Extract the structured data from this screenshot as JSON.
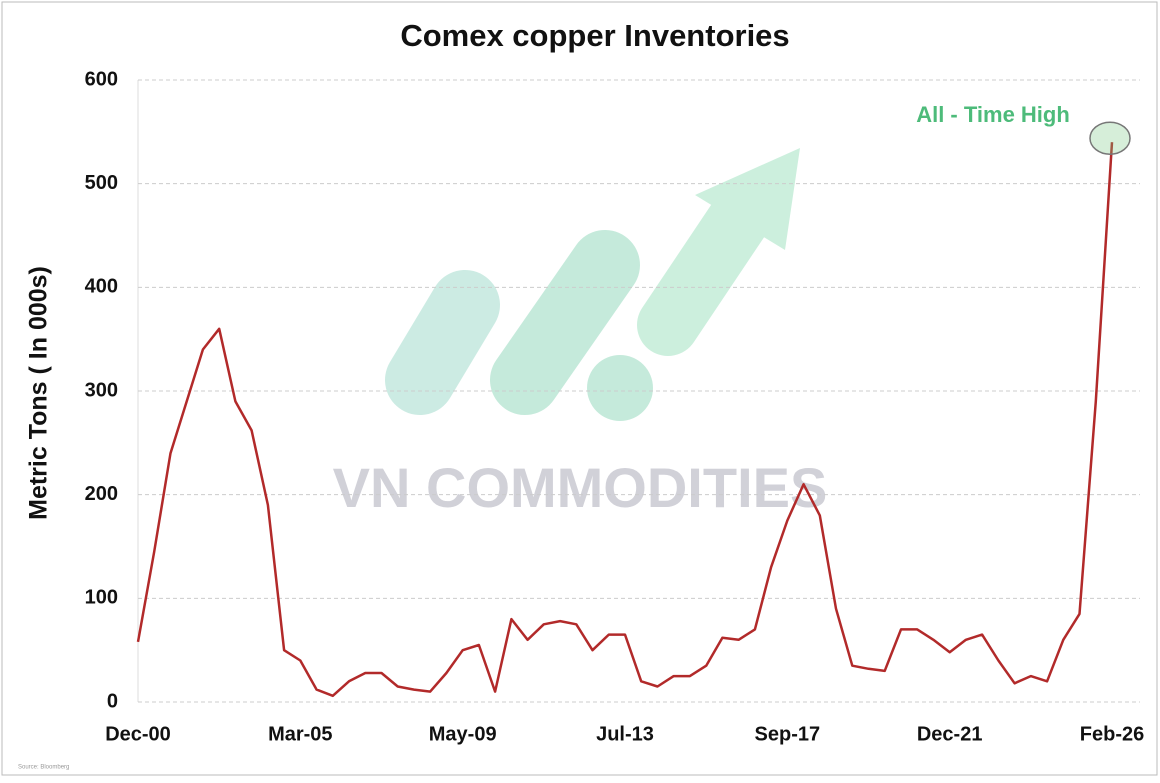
{
  "chart_data": {
    "type": "line",
    "title": "Comex copper Inventories",
    "y_label": "Metric Tons ( In 000s)",
    "annotation": "All - Time High",
    "watermark": "VN COMMODITIES",
    "source": "Source: Bloomberg",
    "categories": [
      "Dec-00",
      null,
      null,
      null,
      null,
      null,
      null,
      null,
      null,
      null,
      "Mar-05",
      null,
      null,
      null,
      null,
      null,
      null,
      null,
      null,
      null,
      "May-09",
      null,
      null,
      null,
      null,
      null,
      null,
      null,
      null,
      null,
      "Jul-13",
      null,
      null,
      null,
      null,
      null,
      null,
      null,
      null,
      null,
      "Sep-17",
      null,
      null,
      null,
      null,
      null,
      null,
      null,
      null,
      null,
      "Dec-21",
      null,
      null,
      null,
      null,
      null,
      null,
      null,
      null,
      null,
      "Feb-26"
    ],
    "series": [
      {
        "name": "Comex copper inventories",
        "color": "#b22a2a",
        "values": [
          58,
          145,
          240,
          290,
          340,
          360,
          290,
          262,
          190,
          50,
          40,
          12,
          6,
          20,
          28,
          28,
          15,
          12,
          10,
          28,
          50,
          55,
          10,
          80,
          60,
          75,
          78,
          75,
          50,
          65,
          65,
          20,
          15,
          25,
          25,
          35,
          62,
          60,
          70,
          130,
          175,
          210,
          180,
          90,
          35,
          32,
          30,
          70,
          70,
          60,
          48,
          60,
          65,
          40,
          18,
          25,
          20,
          60,
          85,
          290,
          540
        ]
      }
    ],
    "ylim": [
      0,
      600
    ],
    "yticks": [
      0,
      100,
      200,
      300,
      400,
      500,
      600
    ],
    "grid": true
  }
}
